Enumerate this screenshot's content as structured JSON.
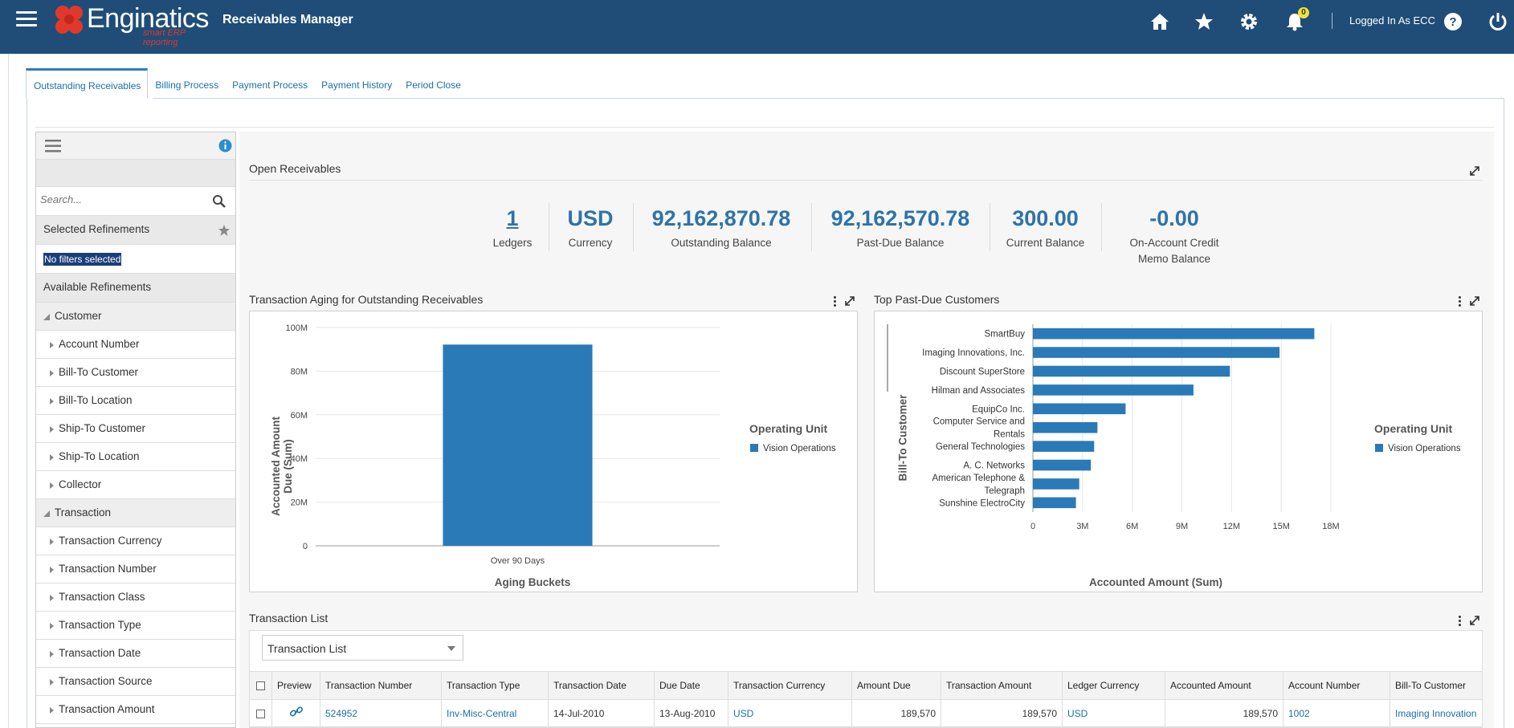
{
  "header": {
    "brand": "Enginatics",
    "brand_tagline": "smart ERP reporting",
    "app_title": "Receivables Manager",
    "notification_count": "0",
    "logged_in": "Logged In As ECC"
  },
  "tabs": [
    "Outstanding Receivables",
    "Billing Process",
    "Payment Process",
    "Payment History",
    "Period Close"
  ],
  "sidebar": {
    "search_placeholder": "Search...",
    "selected_refinements": "Selected Refinements",
    "no_filters": "No filters selected",
    "available_refinements": "Available Refinements",
    "groups": [
      {
        "label": "Customer",
        "items": [
          "Account Number",
          "Bill-To Customer",
          "Bill-To Location",
          "Ship-To Customer",
          "Ship-To Location",
          "Collector"
        ]
      },
      {
        "label": "Transaction",
        "items": [
          "Transaction Currency",
          "Transaction Number",
          "Transaction Class",
          "Transaction Type",
          "Transaction Date",
          "Transaction Source",
          "Transaction Amount"
        ]
      }
    ]
  },
  "open_receivables": {
    "title": "Open Receivables",
    "stats": [
      {
        "value": "1",
        "label": "Ledgers"
      },
      {
        "value": "USD",
        "label": "Currency"
      },
      {
        "value": "92,162,870.78",
        "label": "Outstanding Balance"
      },
      {
        "value": "92,162,570.78",
        "label": "Past-Due Balance"
      },
      {
        "value": "300.00",
        "label": "Current Balance"
      },
      {
        "value": "-0.00",
        "label": "On-Account Credit",
        "label2": "Memo Balance"
      }
    ]
  },
  "chart_data": [
    {
      "type": "bar",
      "title": "Transaction Aging for Outstanding Receivables",
      "categories": [
        "Over 90 Days"
      ],
      "series": [
        {
          "name": "Vision Operations",
          "values": [
            92162870.78
          ]
        }
      ],
      "xlabel": "Aging Buckets",
      "ylabel": "Accounted Amount Due (Sum)",
      "ylim": [
        0,
        100000000
      ],
      "yticks": [
        "0",
        "20M",
        "40M",
        "60M",
        "80M",
        "100M"
      ],
      "legend_title": "Operating Unit",
      "legend_position": "right",
      "color": "#2a7ab8"
    },
    {
      "type": "bar",
      "orientation": "horizontal",
      "title": "Top Past-Due Customers",
      "categories": [
        "SmartBuy",
        "Imaging Innovations, Inc.",
        "Discount SuperStore",
        "Hilman and Associates",
        "EquipCo Inc.",
        "Computer Service and Rentals",
        "General Technologies",
        "A. C. Networks",
        "American Telephone & Telegraph",
        "Sunshine ElectroCity"
      ],
      "category_lines": [
        [
          "SmartBuy"
        ],
        [
          "Imaging Innovations, Inc."
        ],
        [
          "Discount SuperStore"
        ],
        [
          "Hilman and Associates"
        ],
        [
          "EquipCo Inc."
        ],
        [
          "Computer Service and",
          "Rentals"
        ],
        [
          "General Technologies"
        ],
        [
          "A. C. Networks"
        ],
        [
          "American Telephone &",
          "Telegraph"
        ],
        [
          "Sunshine ElectroCity"
        ]
      ],
      "series": [
        {
          "name": "Vision Operations",
          "values": [
            17000000,
            14900000,
            11900000,
            9700000,
            5600000,
            3900000,
            3700000,
            3500000,
            2800000,
            2600000
          ]
        }
      ],
      "xlabel": "Accounted Amount (Sum)",
      "ylabel": "Bill-To Customer",
      "xlim": [
        0,
        18000000
      ],
      "xticks": [
        "0",
        "3M",
        "6M",
        "9M",
        "12M",
        "15M",
        "18M"
      ],
      "legend_title": "Operating Unit",
      "legend_position": "right",
      "color": "#2a7ab8"
    }
  ],
  "transaction_list": {
    "title": "Transaction List",
    "view": "Transaction List",
    "columns": [
      "Preview",
      "Transaction Number",
      "Transaction Type",
      "Transaction Date",
      "Due Date",
      "Transaction Currency",
      "Amount Due",
      "Transaction Amount",
      "Ledger Currency",
      "Accounted Amount",
      "Account Number",
      "Bill-To Customer"
    ],
    "rows": [
      {
        "number": "524952",
        "type": "Inv-Misc-Central",
        "date": "14-Jul-2010",
        "due": "13-Aug-2010",
        "currency": "USD",
        "amount_due": "189,570",
        "amount": "189,570",
        "ledger_currency": "USD",
        "accounted": "189,570",
        "account": "1002",
        "customer": "Imaging Innovation"
      }
    ]
  }
}
